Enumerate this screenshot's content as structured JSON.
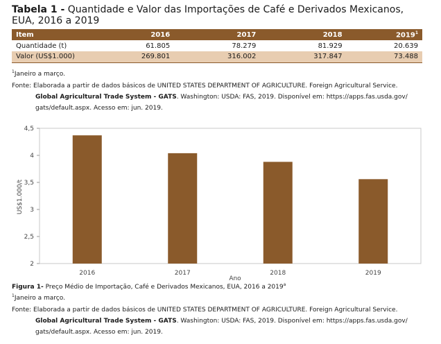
{
  "table": {
    "label": "Tabela 1 -",
    "title": "Quantidade e Valor das Importações de Café e Derivados Mexicanos, EUA, 2016 a 2019",
    "headers": [
      "Item",
      "2016",
      "2017",
      "2018",
      "2019"
    ],
    "header_last_sup": "1",
    "rows": [
      {
        "label": "Quantidade (t)",
        "values": [
          "61.805",
          "78.279",
          "81.929",
          "20.639"
        ]
      },
      {
        "label": "Valor (US$1.000)",
        "values": [
          "269.801",
          "316.002",
          "317.847",
          "73.488"
        ]
      }
    ]
  },
  "table_note": {
    "sup": "1",
    "text": "Janeiro a março."
  },
  "source1": {
    "line1": "Fonte: Elaborada a partir de dados básicos de UNITED STATES DEPARTMENT OF AGRICULTURE. Foreign Agricultural Service.",
    "bold": "Global Agricultural Trade System - GATS",
    "line2_rest": ". Washington: USDA: FAS, 2019. Disponível em: https://apps.fas.usda.gov/",
    "line3": "gats/default.aspx. Acesso em: jun. 2019."
  },
  "chart_data": {
    "type": "bar",
    "categories": [
      "2016",
      "2017",
      "2018",
      "2019"
    ],
    "values": [
      4.37,
      4.04,
      3.88,
      3.56
    ],
    "ylabel": "US$1.000/t",
    "xlabel": "Ano",
    "ylim": [
      2,
      4.5
    ],
    "yticks": [
      "4,5",
      "4",
      "3,5",
      "3",
      "2,5",
      "2"
    ],
    "ytick_values": [
      4.5,
      4,
      3.5,
      3,
      2.5,
      2
    ],
    "bar_color": "#8a5a2b",
    "grid": false
  },
  "figure": {
    "label": "Figura 1-",
    "caption": "Preço Médio de Importação, Café e Derivados Mexicanos, EUA, 2016 a 2019",
    "sup": "a"
  },
  "fig_note": {
    "sup": "1",
    "text": "Janeiro a março."
  },
  "source2": {
    "line1": "Fonte: Elaborada a partir de dados básicos de UNITED STATES DEPARTMENT OF AGRICULTURE. Foreign Agricultural Service.",
    "bold": "Global Agricultural Trade System - GATS",
    "line2_rest": ". Washington: USDA: FAS, 2019. Disponível em: https://apps.fas.usda.gov/",
    "line3": "gats/default.aspx. Acesso em: jun. 2019."
  }
}
